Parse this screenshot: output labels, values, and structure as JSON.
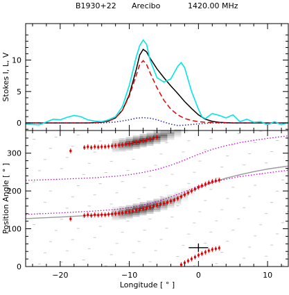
{
  "header": {
    "source": "B1930+22",
    "telescope": "Arecibo",
    "frequency": "1420.00 MHz"
  },
  "colors": {
    "total_intensity": "#000000",
    "linear": "#e00000",
    "circular": "#2020c0",
    "simulated": "#00e6e6",
    "pa_points": "#e00000",
    "rvm_fit": "#999999",
    "rvm_bounds": "#cc00cc",
    "pa_density": "#000000",
    "error_marker": "#000000"
  },
  "chart_data": [
    {
      "panel": "top",
      "type": "line",
      "ylabel": "Stokes I, L, V",
      "xlim": [
        -25,
        13
      ],
      "ylim": [
        -1.2,
        15.8
      ],
      "yticks": [
        0,
        5,
        10
      ],
      "yticklabels": [
        "0",
        "5",
        "10"
      ],
      "series": [
        {
          "style": "solid",
          "color": "#000000",
          "x": [
            -25,
            -20,
            -16,
            -14,
            -13,
            -12,
            -11,
            -10,
            -9,
            -8.5,
            -8,
            -7.5,
            -7,
            -6,
            -5,
            -4,
            -3,
            -2,
            -1,
            0,
            1,
            2,
            3,
            5,
            8,
            13
          ],
          "y": [
            0,
            0,
            0,
            0.1,
            0.3,
            0.8,
            2.0,
            4.5,
            8.5,
            10.8,
            11.7,
            11.3,
            10.3,
            8.6,
            7.2,
            5.9,
            4.7,
            3.4,
            2.3,
            1.3,
            0.6,
            0.25,
            0.1,
            0,
            0,
            0
          ]
        },
        {
          "style": "dashed",
          "color": "#e00000",
          "x": [
            -25,
            -20,
            -16,
            -14,
            -13,
            -12,
            -11,
            -10,
            -9,
            -8.5,
            -8,
            -7.5,
            -7,
            -6,
            -5,
            -4,
            -3,
            -2,
            -1,
            0,
            1,
            3,
            5,
            8,
            13
          ],
          "y": [
            0,
            0,
            0,
            0.1,
            0.3,
            0.8,
            2.0,
            4.3,
            7.6,
            9.3,
            9.9,
            9.3,
            8.0,
            5.6,
            3.6,
            2.2,
            1.3,
            0.7,
            0.4,
            0.2,
            0.1,
            0.05,
            0,
            0,
            0
          ]
        },
        {
          "style": "dotted",
          "color": "#2020c0",
          "x": [
            -25,
            -18,
            -14,
            -12,
            -10,
            -9,
            -8,
            -7,
            -6,
            -5,
            -4,
            -3,
            -2,
            0,
            2,
            5,
            8,
            13
          ],
          "y": [
            0,
            0,
            0,
            0.15,
            0.5,
            0.75,
            0.85,
            0.75,
            0.5,
            0.15,
            -0.2,
            -0.4,
            -0.35,
            -0.15,
            0,
            0,
            0,
            0
          ]
        },
        {
          "style": "solid",
          "color": "#00e6e6",
          "x": [
            -25,
            -23,
            -21,
            -20,
            -19,
            -18,
            -17,
            -16,
            -15,
            -14,
            -13,
            -12,
            -11,
            -10,
            -9,
            -8.5,
            -8,
            -7.5,
            -7,
            -6,
            -5,
            -4,
            -3,
            -2.5,
            -2,
            -1,
            0,
            0.5,
            1,
            2,
            3,
            4,
            5,
            6,
            7,
            8,
            9,
            10,
            11,
            12,
            13
          ],
          "y": [
            -0.2,
            -0.3,
            0.6,
            0.5,
            0.9,
            1.2,
            1.0,
            0.5,
            0.3,
            0.2,
            0.5,
            1.0,
            2.6,
            6.0,
            10.5,
            12.3,
            13.2,
            12.5,
            10.0,
            7.2,
            6.5,
            7.0,
            9.0,
            9.6,
            8.8,
            5.0,
            2.2,
            1.0,
            0.7,
            1.5,
            1.2,
            0.8,
            1.3,
            0.2,
            0.6,
            0.1,
            0.2,
            -0.3,
            0.2,
            -0.3,
            0.1
          ]
        }
      ]
    },
    {
      "panel": "bottom",
      "type": "scatter",
      "ylabel": "Position Angle [ ° ]",
      "xlabel": "Longitude [ ° ]",
      "xlim": [
        -25,
        13
      ],
      "ylim": [
        0,
        360
      ],
      "xticks": [
        -20,
        -10,
        0,
        10
      ],
      "xticklabels": [
        "−20",
        "−10",
        "0",
        "10"
      ],
      "yticks": [
        0,
        100,
        200,
        300
      ],
      "yticklabels": [
        "0",
        "100",
        "200",
        "300"
      ],
      "pa_points": {
        "x": [
          -18.5,
          -16.5,
          -16,
          -15.5,
          -15,
          -14.5,
          -14,
          -13.5,
          -13,
          -12.5,
          -12,
          -11.5,
          -11,
          -10.5,
          -10,
          -9.5,
          -9,
          -8.5,
          -8,
          -7.5,
          -7,
          -6.5,
          -6,
          -5.5,
          -5,
          -4.5,
          -4,
          -3.5,
          -3,
          -2.5,
          -2,
          -1.5,
          -1,
          -0.5,
          0,
          0.5,
          1,
          1.5,
          2,
          2.5,
          3
        ],
        "y": [
          126,
          135,
          137,
          135,
          137,
          136,
          137,
          137,
          138,
          139,
          140,
          141,
          142,
          144,
          145,
          147,
          149,
          151,
          153,
          155,
          157,
          160,
          162,
          165,
          167,
          170,
          173,
          176,
          180,
          185,
          190,
          195,
          200,
          205,
          210,
          214,
          218,
          222,
          225,
          227,
          229
        ]
      },
      "pa_points_upper": {
        "x": [
          -18.5,
          -16.5,
          -16,
          -15.5,
          -15,
          -14.5,
          -14,
          -13.5,
          -13,
          -12.5,
          -12,
          -11.5,
          -11,
          -10.5,
          -10,
          -9.5,
          -9,
          -8.5,
          -8,
          -7.5,
          -7,
          -6.5,
          -6
        ],
        "y": [
          306,
          315,
          317,
          315,
          317,
          316,
          317,
          317,
          318,
          319,
          320,
          321,
          322,
          324,
          325,
          327,
          329,
          331,
          333,
          335,
          337,
          340,
          342
        ]
      },
      "pa_points_lower": {
        "x": [
          -2.5,
          -2,
          -1.5,
          -1,
          -0.5,
          0,
          0.5,
          1,
          1.5,
          2,
          2.5,
          3
        ],
        "y": [
          5,
          10,
          15,
          20,
          25,
          30,
          34,
          38,
          42,
          45,
          47,
          49
        ]
      },
      "error_marker": {
        "x": 0,
        "y": 50
      },
      "rvm_fit": {
        "x": [
          -25,
          -20,
          -15,
          -12,
          -10,
          -8,
          -6,
          -4,
          -2,
          0,
          2,
          4,
          6,
          8,
          10,
          13
        ],
        "y": [
          127,
          131,
          136,
          140,
          145,
          152,
          162,
          175,
          191,
          208,
          222,
          234,
          243,
          251,
          258,
          266
        ]
      },
      "rvm_lower_bound": {
        "x": [
          -25,
          -20,
          -15,
          -12,
          -10,
          -8,
          -6,
          -4,
          -2,
          0,
          2,
          4,
          6,
          8,
          10,
          13
        ],
        "y": [
          138,
          142,
          147,
          151,
          156,
          163,
          172,
          184,
          198,
          212,
          223,
          231,
          238,
          243,
          248,
          255
        ]
      },
      "rvm_upper_bound": {
        "x": [
          -25,
          -20,
          -15,
          -12,
          -10,
          -8,
          -6,
          -4,
          -2,
          0,
          2,
          4,
          6,
          8,
          10,
          13
        ],
        "y": [
          228,
          231,
          235,
          239,
          243,
          249,
          257,
          268,
          282,
          297,
          310,
          320,
          328,
          334,
          339,
          346
        ]
      },
      "pa_density": {
        "x": [
          -12,
          -11,
          -10,
          -9,
          -8,
          -7,
          -6,
          -5,
          -4,
          -3,
          -2,
          -1
        ],
        "y": [
          140,
          142,
          145,
          149,
          153,
          157,
          162,
          167,
          173,
          180,
          190,
          200
        ],
        "weights": [
          0.4,
          0.7,
          0.9,
          1.0,
          1.0,
          0.95,
          0.85,
          0.7,
          0.5,
          0.35,
          0.2,
          0.1
        ]
      }
    }
  ]
}
